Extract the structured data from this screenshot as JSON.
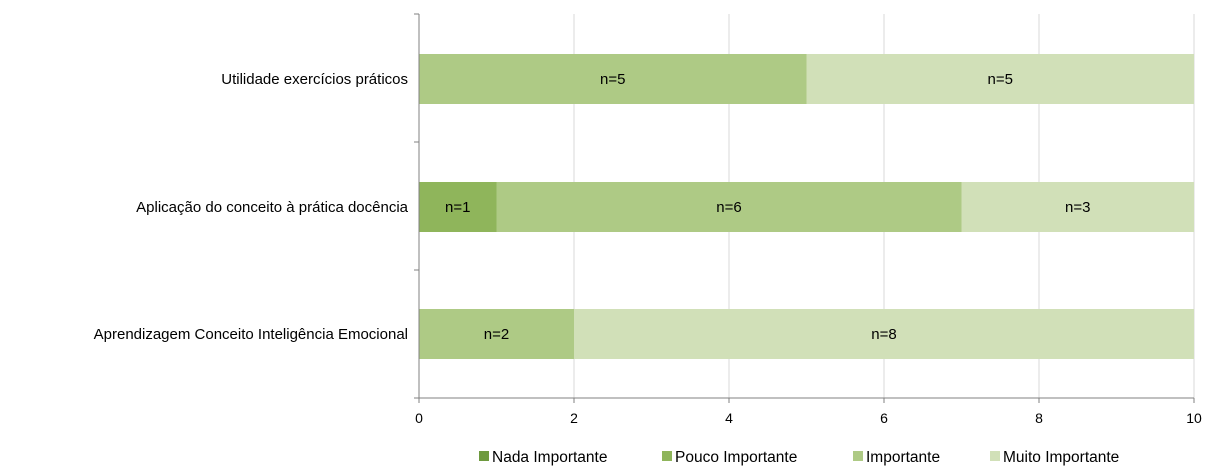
{
  "chart_data": {
    "type": "bar",
    "orientation": "horizontal",
    "stacked": true,
    "categories": [
      "Utilidade exercícios práticos",
      "Aplicação do conceito à prática docência",
      "Aprendizagem Conceito Inteligência Emocional"
    ],
    "series": [
      {
        "name": "Nada Importante",
        "color": "#6E9A3F",
        "values": [
          0,
          0,
          0
        ],
        "labels": [
          "",
          "",
          ""
        ]
      },
      {
        "name": "Pouco Importante",
        "color": "#8FB55B",
        "values": [
          0,
          1,
          0
        ],
        "labels": [
          "",
          "n=1",
          ""
        ]
      },
      {
        "name": "Importante",
        "color": "#AECA85",
        "values": [
          5,
          6,
          2
        ],
        "labels": [
          "n=5",
          "n=6",
          "n=2"
        ]
      },
      {
        "name": "Muito Importante",
        "color": "#D1E0B8",
        "values": [
          5,
          3,
          8
        ],
        "labels": [
          "n=5",
          "n=3",
          "n=8"
        ]
      }
    ],
    "xlim": [
      0,
      10
    ],
    "xticks": [
      "0",
      "2",
      "4",
      "6",
      "8",
      "10"
    ],
    "grid": true,
    "legend": "bottom",
    "title": "",
    "xlabel": "",
    "ylabel": ""
  }
}
